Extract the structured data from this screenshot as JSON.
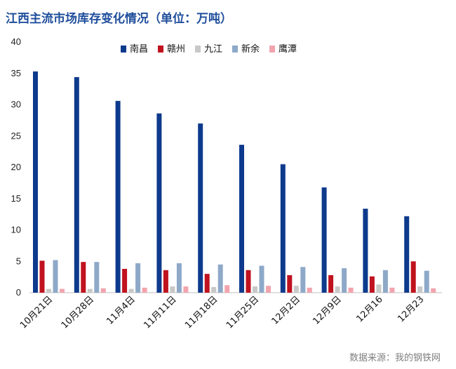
{
  "title": "江西主流市场库存变化情况（单位：万吨）",
  "source": "数据来源：我的钢铁网",
  "chart_data": {
    "type": "bar",
    "title": "江西主流市场库存变化情况（单位：万吨）",
    "categories": [
      "10月21日",
      "10月28日",
      "11月4日",
      "11月11日",
      "11月18日",
      "11月25日",
      "12月2日",
      "12月9日",
      "12月16",
      "12月23"
    ],
    "ylim": [
      0,
      40
    ],
    "yticks": [
      0,
      5,
      10,
      15,
      20,
      25,
      30,
      35,
      40
    ],
    "grid": false,
    "legend_position": "top",
    "series": [
      {
        "name": "南昌",
        "color": "#0d3a8c",
        "values": [
          35.3,
          34.4,
          30.6,
          28.6,
          27.0,
          23.6,
          20.5,
          16.8,
          13.4,
          12.2
        ]
      },
      {
        "name": "赣州",
        "color": "#c0121f",
        "values": [
          5.1,
          4.9,
          3.8,
          3.6,
          3.0,
          3.6,
          2.8,
          2.8,
          2.6,
          5.0
        ]
      },
      {
        "name": "九江",
        "color": "#c8c8c8",
        "values": [
          0.6,
          0.6,
          0.6,
          1.0,
          0.9,
          1.0,
          1.1,
          1.0,
          1.3,
          1.0
        ]
      },
      {
        "name": "新余",
        "color": "#8ea9c8",
        "values": [
          5.2,
          4.9,
          4.7,
          4.7,
          4.5,
          4.3,
          4.1,
          3.9,
          3.6,
          3.5
        ]
      },
      {
        "name": "鹰潭",
        "color": "#f2a4ae",
        "values": [
          0.6,
          0.7,
          0.8,
          1.0,
          1.2,
          1.1,
          0.8,
          0.8,
          0.8,
          0.7
        ]
      }
    ]
  }
}
